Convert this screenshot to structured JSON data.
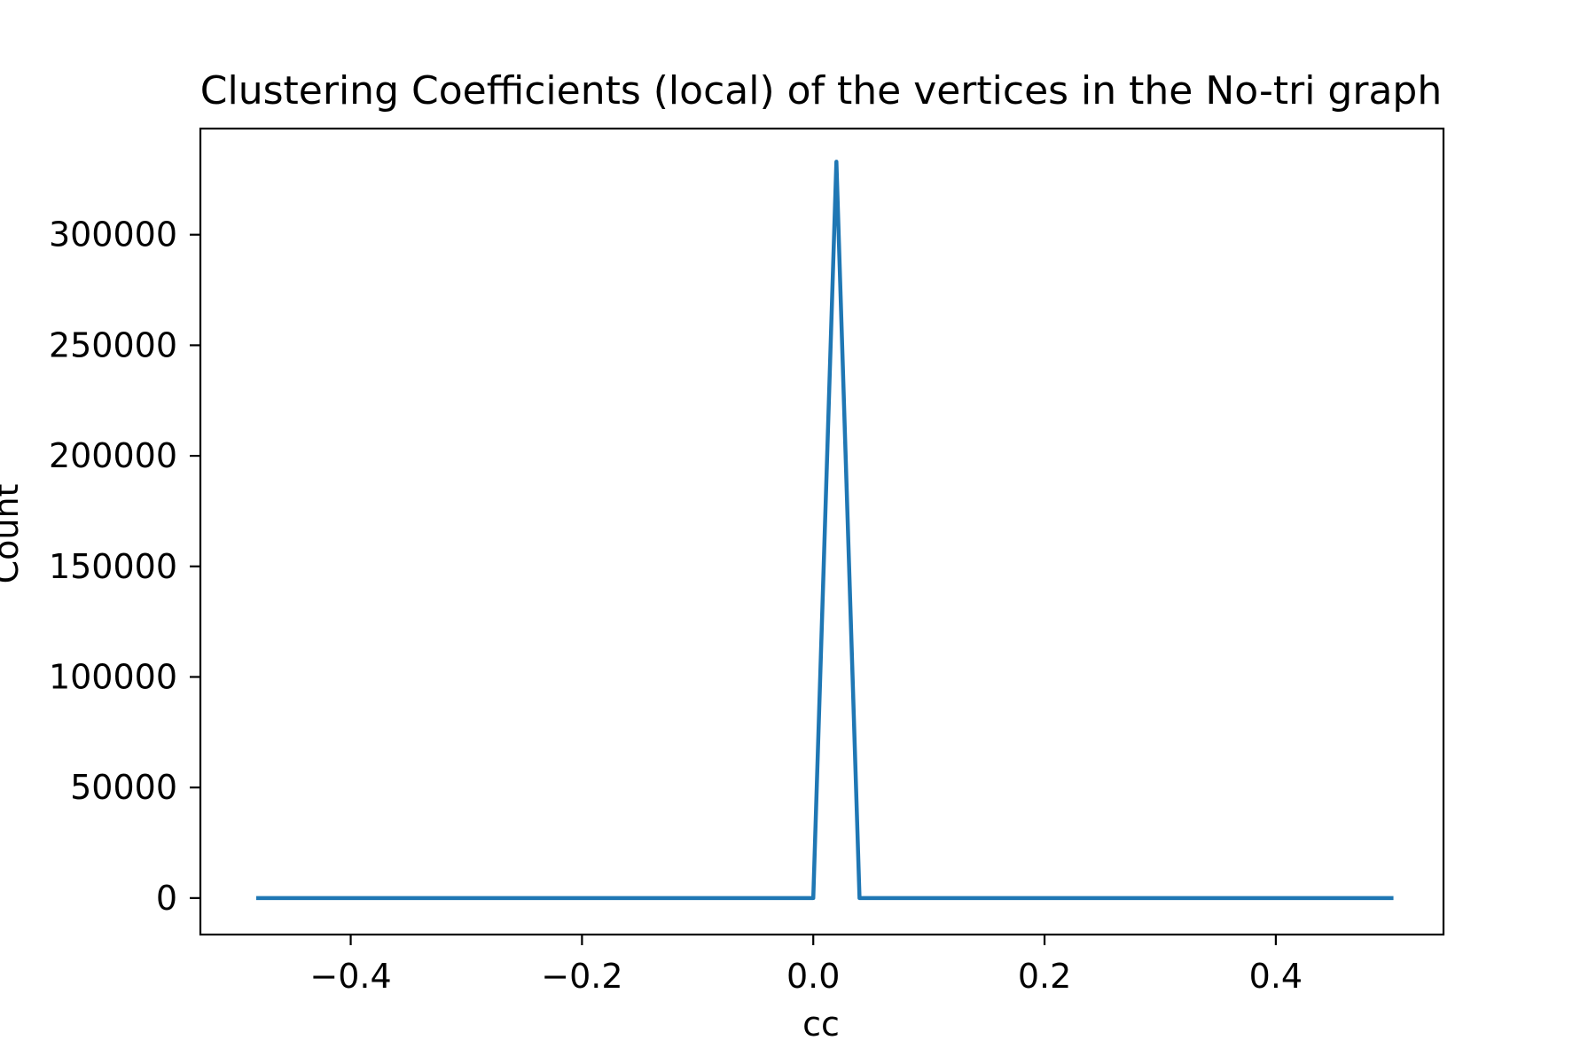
{
  "chart_data": {
    "type": "line",
    "title": "Clustering Coefficients (local) of the vertices in the No-tri graph",
    "xlabel": "cc",
    "ylabel": "Count",
    "xlim": [
      -0.53,
      0.545
    ],
    "ylim": [
      -16500,
      348000
    ],
    "grid": false,
    "x_ticks": [
      -0.4,
      -0.2,
      0.0,
      0.2,
      0.4
    ],
    "x_tick_labels": [
      "−0.4",
      "−0.2",
      "0.0",
      "0.2",
      "0.4"
    ],
    "y_ticks": [
      0,
      50000,
      100000,
      150000,
      200000,
      250000,
      300000
    ],
    "y_tick_labels": [
      "0",
      "50000",
      "100000",
      "150000",
      "200000",
      "250000",
      "300000"
    ],
    "series": [
      {
        "name": "count",
        "color": "#1f77b4",
        "x": [
          -0.48,
          0.0,
          0.02,
          0.04,
          0.5
        ],
        "y": [
          0,
          0,
          333000,
          0,
          0
        ]
      }
    ]
  }
}
